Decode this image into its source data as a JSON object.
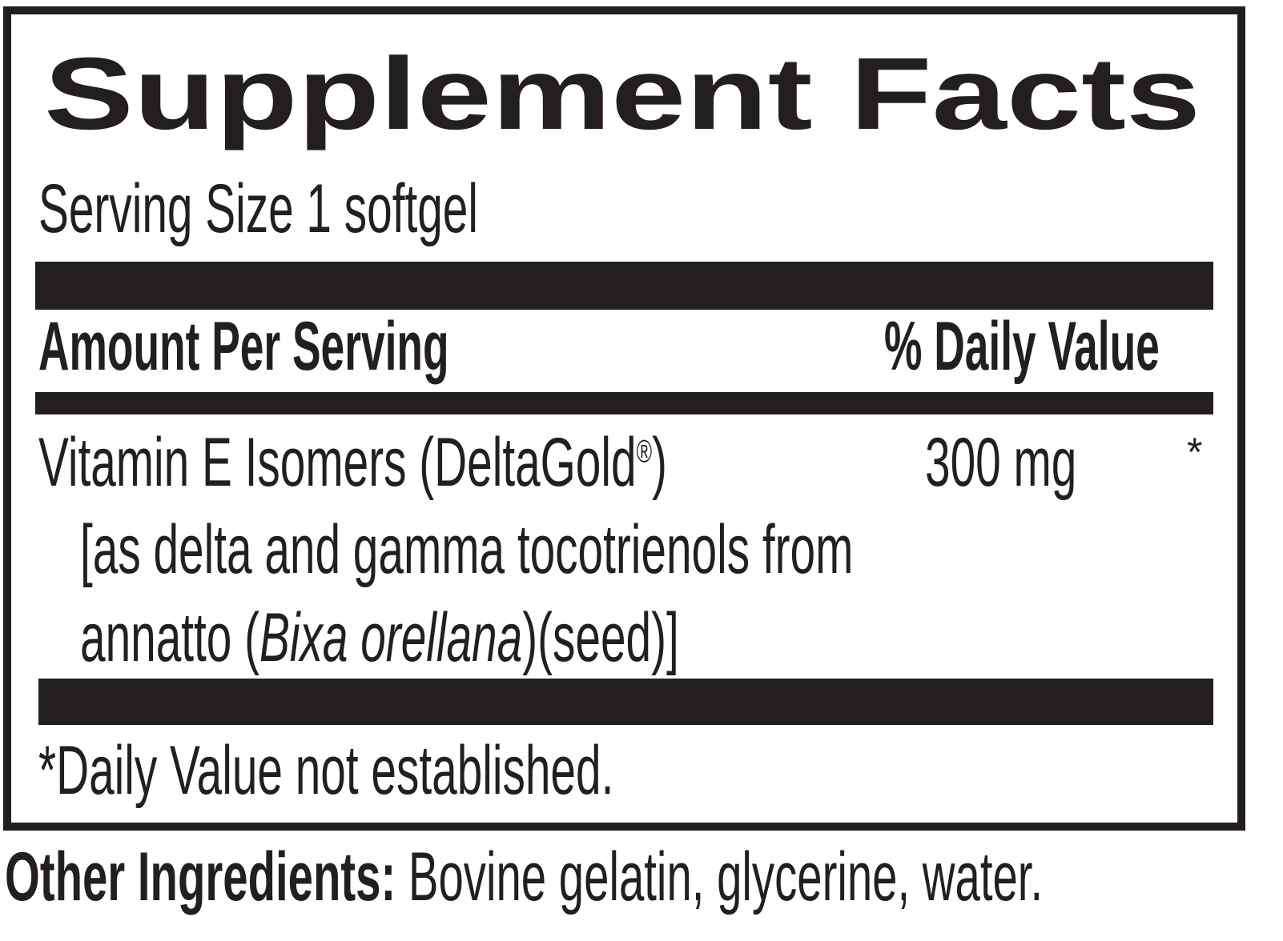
{
  "label": {
    "title": "Supplement Facts",
    "serving_size": "Serving Size 1 softgel",
    "header": {
      "amount_per_serving": "Amount Per Serving",
      "daily_value": "% Daily Value"
    },
    "ingredients": [
      {
        "name": "Vitamin E Isomers (DeltaGold",
        "registered_mark": "®",
        "name_close": ")",
        "amount": "300 mg",
        "daily_value": "*",
        "detail_line1": "[as delta and gamma tocotrienols from",
        "detail_line2_prefix": "annatto (",
        "detail_line2_italic": "Bixa orellana",
        "detail_line2_suffix": ")(seed)]"
      }
    ],
    "footnote": "*Daily Value not established."
  },
  "other_ingredients": {
    "label": "Other Ingredients:",
    "value": "Bovine gelatin, glycerine, water."
  },
  "colors": {
    "ink": "#231f20",
    "background": "#ffffff"
  }
}
